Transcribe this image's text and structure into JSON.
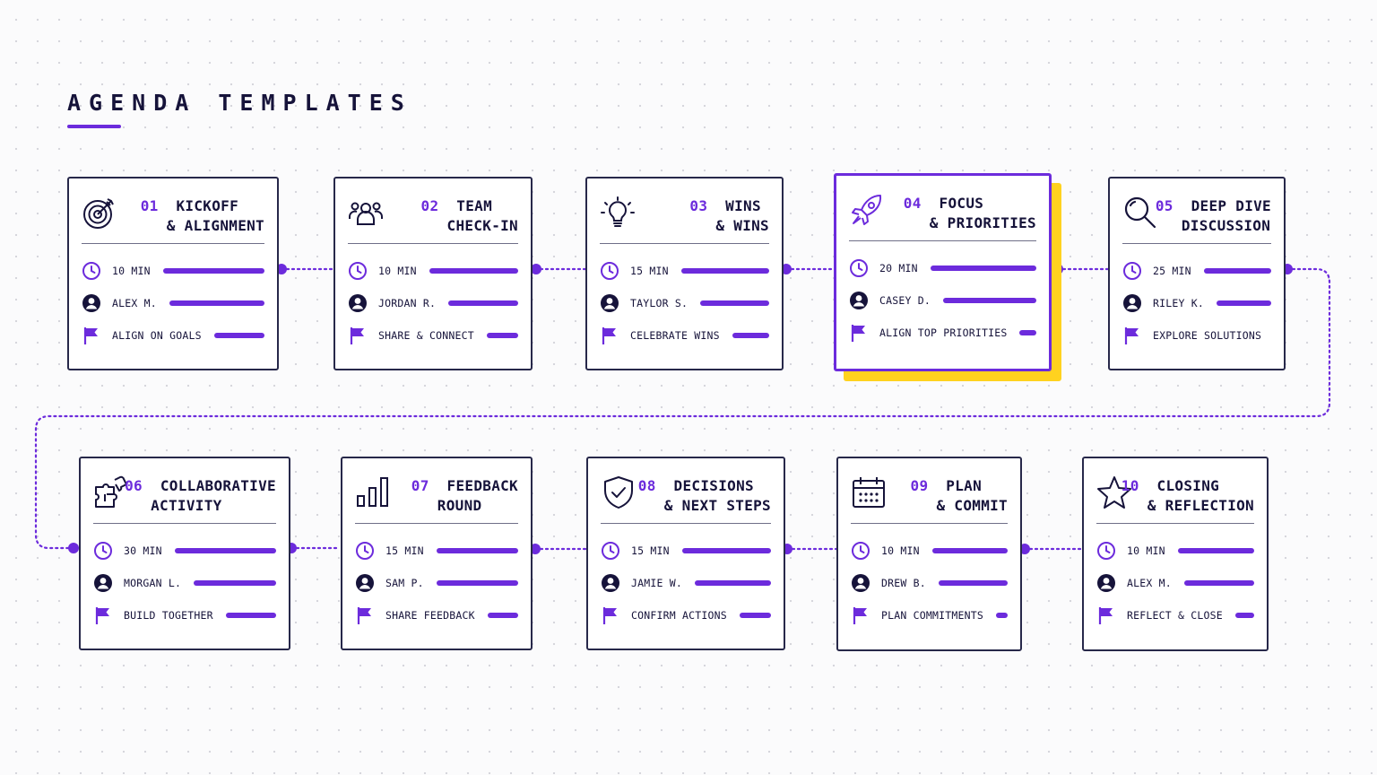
{
  "title": "AGENDA TEMPLATES",
  "colors": {
    "accent": "#6c2bdc",
    "highlight_shadow": "#ffd21f",
    "text": "#16133a",
    "border": "#27284a"
  },
  "cards": [
    {
      "num": "01",
      "title1": "KICKOFF",
      "title2": "& ALIGNMENT",
      "icon": "target-icon",
      "time": "10 MIN",
      "person": "ALEX M.",
      "goal": "ALIGN ON GOALS",
      "highlighted": false
    },
    {
      "num": "02",
      "title1": "TEAM",
      "title2": "CHECK-IN",
      "icon": "team-icon",
      "time": "10 MIN",
      "person": "JORDAN R.",
      "goal": "SHARE & CONNECT",
      "highlighted": false
    },
    {
      "num": "03",
      "title1": "WINS",
      "title2": "& WINS",
      "icon": "lightbulb-icon",
      "time": "15 MIN",
      "person": "TAYLOR S.",
      "goal": "CELEBRATE WINS",
      "highlighted": false
    },
    {
      "num": "04",
      "title1": "FOCUS",
      "title2": "& PRIORITIES",
      "icon": "rocket-icon",
      "time": "20 MIN",
      "person": "CASEY D.",
      "goal": "ALIGN TOP PRIORITIES",
      "highlighted": true
    },
    {
      "num": "05",
      "title1": "DEEP DIVE",
      "title2": "DISCUSSION",
      "icon": "magnifier-icon",
      "time": "25 MIN",
      "person": "RILEY K.",
      "goal": "EXPLORE SOLUTIONS",
      "highlighted": false
    },
    {
      "num": "06",
      "title1": "COLLABORATIVE",
      "title2": "ACTIVITY",
      "icon": "puzzle-icon",
      "time": "30 MIN",
      "person": "MORGAN L.",
      "goal": "BUILD TOGETHER",
      "highlighted": false
    },
    {
      "num": "07",
      "title1": "FEEDBACK",
      "title2": "ROUND",
      "icon": "bar-chart-icon",
      "time": "15 MIN",
      "person": "SAM P.",
      "goal": "SHARE FEEDBACK",
      "highlighted": false
    },
    {
      "num": "08",
      "title1": "DECISIONS",
      "title2": "& NEXT STEPS",
      "icon": "shield-check-icon",
      "time": "15 MIN",
      "person": "JAMIE W.",
      "goal": "CONFIRM ACTIONS",
      "highlighted": false
    },
    {
      "num": "09",
      "title1": "PLAN",
      "title2": "& COMMIT",
      "icon": "calendar-icon",
      "time": "10 MIN",
      "person": "DREW B.",
      "goal": "PLAN COMMITMENTS",
      "highlighted": false
    },
    {
      "num": "10",
      "title1": "CLOSING",
      "title2": "& REFLECTION",
      "icon": "star-icon",
      "time": "10 MIN",
      "person": "ALEX M.",
      "goal": "REFLECT & CLOSE",
      "highlighted": false
    }
  ]
}
